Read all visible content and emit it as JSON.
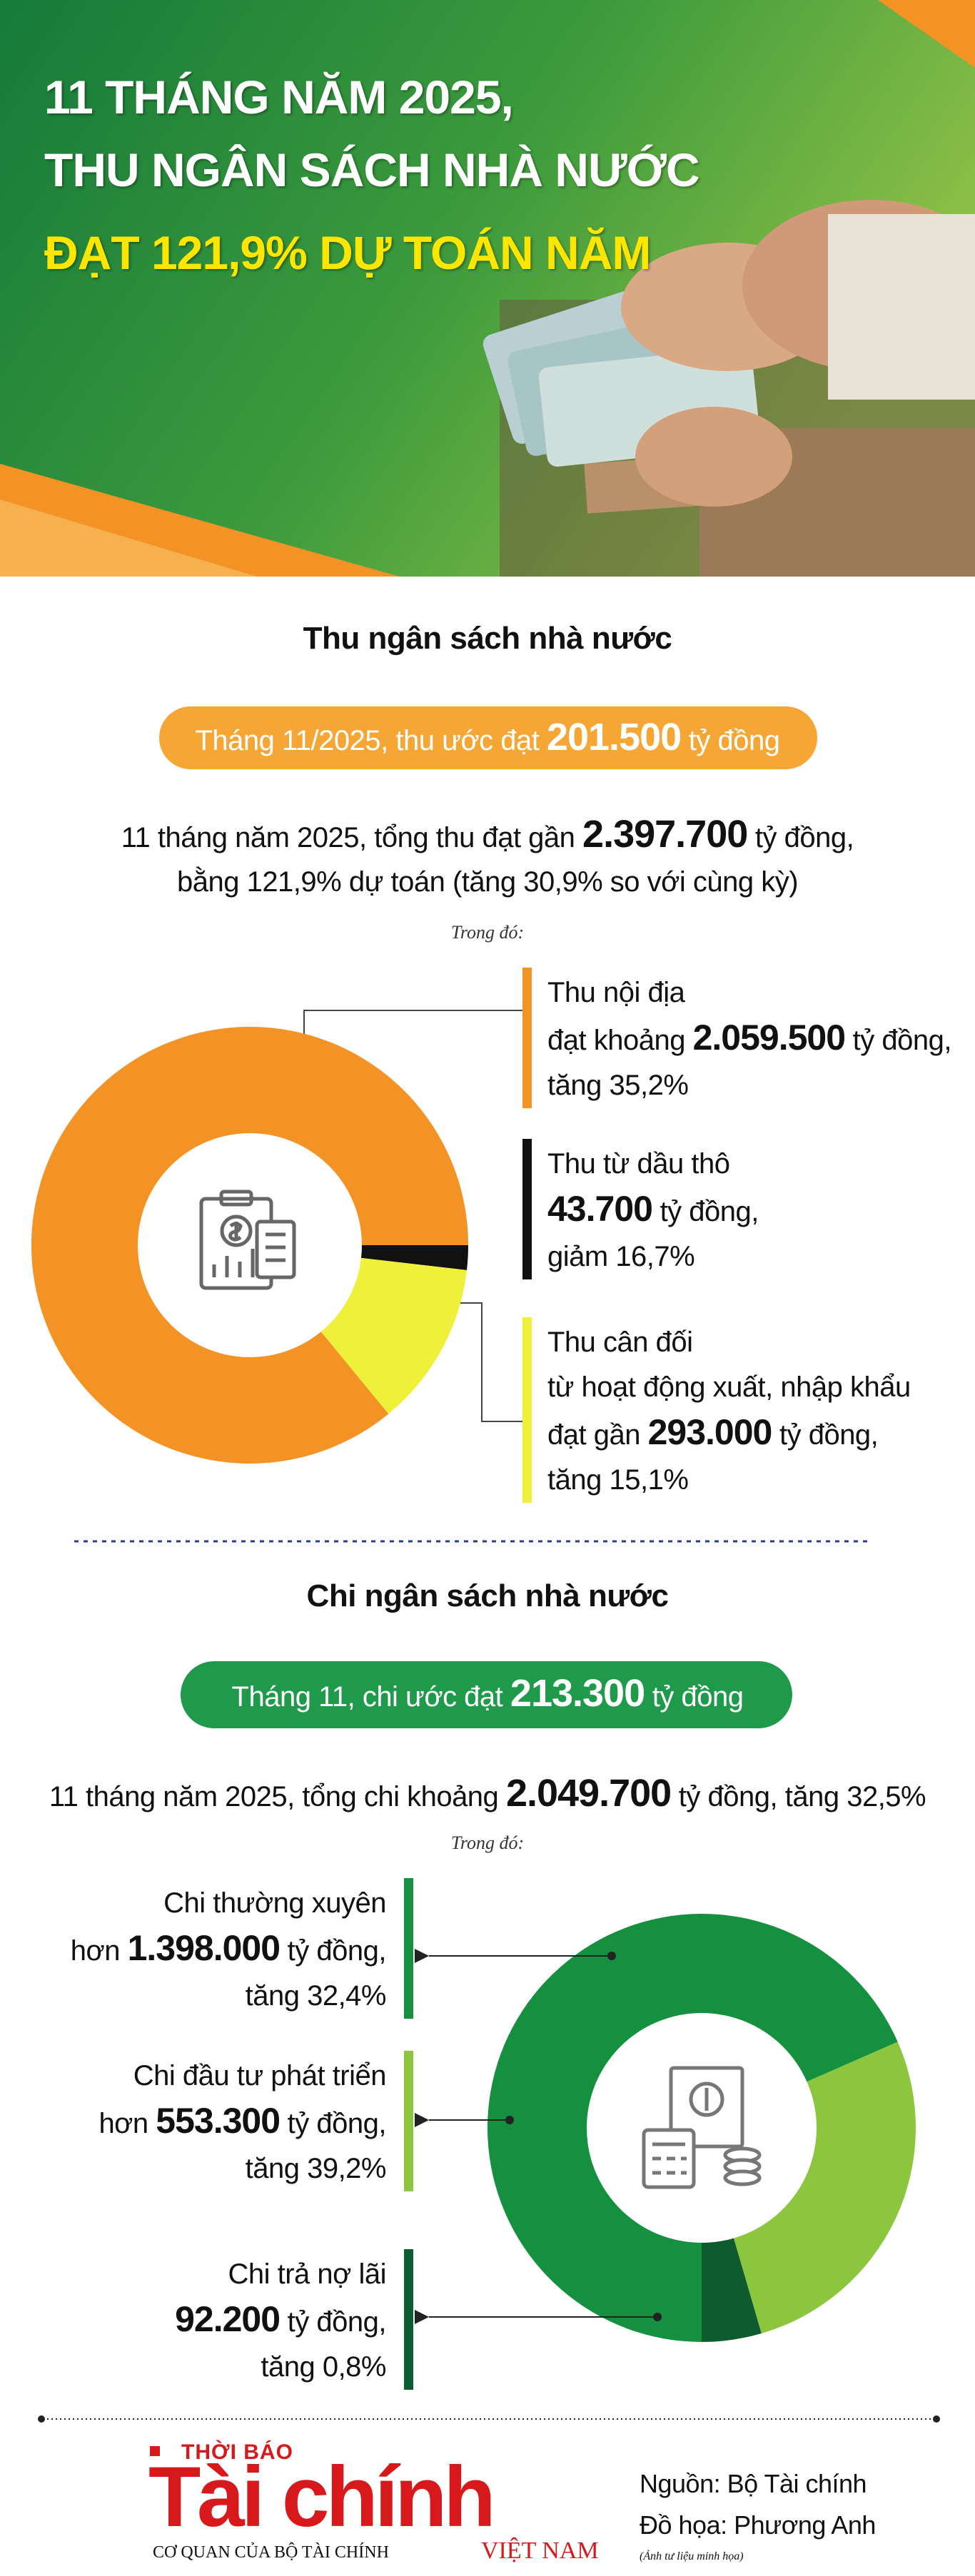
{
  "header": {
    "title": [
      "11 THÁNG NĂM 2025,",
      "THU NGÂN SÁCH NHÀ NƯỚC",
      "ĐẠT 121,9% DỰ TOÁN NĂM"
    ]
  },
  "revenue": {
    "heading": "Thu ngân sách nhà nước",
    "pill": {
      "before": "Tháng 11/2025, thu ước đạt",
      "amount": "201.500",
      "after": "tỷ đồng"
    },
    "summary": {
      "before": "11 tháng năm 2025, tổng thu đạt gần",
      "amount": "2.397.700",
      "after": "tỷ đồng,",
      "line2": "bằng 121,9% dự toán (tăng 30,9% so với cùng kỳ)"
    },
    "note": "Trong đó:"
  },
  "expenditure": {
    "heading": "Chi ngân sách nhà nước",
    "pill": {
      "before": "Tháng 11, chi ước đạt",
      "amount": "213.300",
      "after": "tỷ đồng"
    },
    "summary": {
      "before": "11 tháng năm 2025, tổng chi khoảng",
      "amount": "2.049.700",
      "after": "tỷ đồng, tăng 32,5%"
    },
    "note": "Trong đó:"
  },
  "chart_data": [
    {
      "type": "donut",
      "categories": [
        "Thu nội địa",
        "Thu từ dầu thô",
        "Thu cân đối"
      ],
      "values": [
        2059500,
        43700,
        293000
      ],
      "value_labels": [
        "2.059.500",
        "43.700",
        "293.000"
      ],
      "colors": [
        "#f39325",
        "#111111",
        "#eef03a"
      ],
      "details": [
        {
          "prefix": "đạt khoảng",
          "suffix": "tỷ đồng,",
          "change": "tăng 35,2%"
        },
        {
          "suffix": "tỷ đồng,",
          "change": "giảm 16,7%"
        },
        {
          "extra": "từ hoạt động xuất, nhập khẩu",
          "prefix": "đạt gần",
          "suffix": "tỷ đồng,",
          "change": "tăng 15,1%"
        }
      ]
    },
    {
      "type": "donut",
      "categories": [
        "Chi thường xuyên",
        "Chi đầu tư phát triển",
        "Chi trả nợ lãi"
      ],
      "values": [
        1398000,
        553300,
        92200
      ],
      "value_labels": [
        "1.398.000",
        "553.300",
        "92.200"
      ],
      "colors": [
        "#14903f",
        "#8cc63f",
        "#0d5b2e"
      ],
      "details": [
        {
          "prefix": "hơn",
          "suffix": "tỷ đồng,",
          "change": "tăng 32,4%"
        },
        {
          "prefix": "hơn",
          "suffix": "tỷ đồng,",
          "change": "tăng 39,2%"
        },
        {
          "suffix": "tỷ đồng,",
          "change": "tăng 0,8%"
        }
      ]
    }
  ],
  "footer": {
    "logo_top": "THỜI BÁO",
    "logo_main": "Tài chính",
    "logo_sub": "VIỆT NAM",
    "logo_tagline": "CƠ QUAN CỦA BỘ TÀI CHÍNH",
    "source": "Nguồn: Bộ Tài chính",
    "design": "Đồ họa: Phương Anh",
    "photo_note": "(Ảnh tư liệu minh họa)"
  }
}
